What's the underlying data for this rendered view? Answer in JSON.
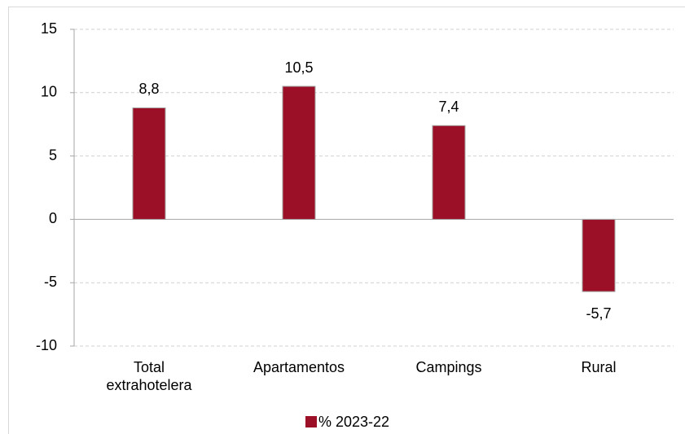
{
  "chart_data": {
    "type": "bar",
    "categories": [
      "Total extrahotelera",
      "Apartamentos",
      "Campings",
      "Rural"
    ],
    "series": [
      {
        "name": "% 2023-22",
        "color": "#9b1027",
        "values": [
          8.8,
          10.5,
          7.4,
          -5.7
        ],
        "value_labels": [
          "8,8",
          "10,5",
          "7,4",
          "-5,7"
        ]
      }
    ],
    "ylim": [
      -10,
      15
    ],
    "yticks": [
      -10,
      -5,
      0,
      5,
      10,
      15
    ],
    "grid": true,
    "legend": "bottom"
  }
}
